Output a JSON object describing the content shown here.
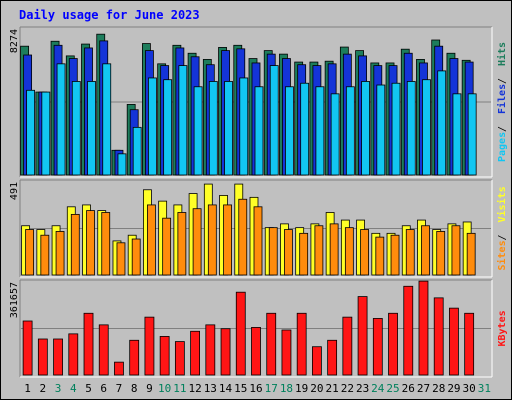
{
  "chart_data": {
    "type": "bar",
    "title": "Daily usage for June 2023",
    "days": [
      "1",
      "2",
      "3",
      "4",
      "5",
      "6",
      "7",
      "8",
      "9",
      "10",
      "11",
      "12",
      "13",
      "14",
      "15",
      "16",
      "17",
      "18",
      "19",
      "20",
      "21",
      "22",
      "23",
      "24",
      "25",
      "26",
      "27",
      "28",
      "29",
      "30",
      "31"
    ],
    "weekend_days": [
      "3",
      "4",
      "10",
      "11",
      "17",
      "18",
      "24",
      "25",
      "31"
    ],
    "panels": [
      {
        "id": "hits-files-pages",
        "max_label": "8274",
        "max_value": 8274,
        "axis_labels": [
          "Pages",
          "Files",
          "Hits"
        ],
        "series": [
          {
            "name": "Hits",
            "color": "#1d7d5c",
            "values": [
              7300,
              4700,
              7580,
              6750,
              7420,
              7980,
              1400,
              4000,
              7450,
              6300,
              7350,
              6900,
              6550,
              7230,
              7350,
              6600,
              7050,
              6850,
              6400,
              6400,
              6450,
              7250,
              7050,
              6350,
              6350,
              7130,
              6550,
              7650,
              6900,
              6500,
              0
            ]
          },
          {
            "name": "Files",
            "color": "#1434d8",
            "values": [
              6800,
              4700,
              7350,
              6600,
              7200,
              7600,
              1400,
              3700,
              7050,
              6200,
              7200,
              6700,
              6250,
              7050,
              7150,
              6350,
              6850,
              6600,
              6250,
              6200,
              6300,
              6850,
              6750,
              6200,
              6200,
              6900,
              6350,
              7300,
              6600,
              6400,
              0
            ]
          },
          {
            "name": "Pages",
            "color": "#12c6f2",
            "values": [
              4800,
              4700,
              6300,
              5300,
              5300,
              6300,
              1200,
              2700,
              5500,
              5400,
              6200,
              5000,
              5300,
              5300,
              5500,
              5000,
              6200,
              5000,
              5200,
              5000,
              4600,
              5000,
              5300,
              5100,
              5200,
              5300,
              5400,
              5900,
              4600,
              4600,
              0
            ]
          }
        ]
      },
      {
        "id": "visits-sites",
        "max_label": "491",
        "max_value": 491,
        "axis_labels": [
          "Sites",
          "Visits"
        ],
        "series": [
          {
            "name": "Visits",
            "color": "#ffff27",
            "values": [
              260,
              240,
              260,
              360,
              370,
              340,
              180,
              210,
              450,
              390,
              370,
              430,
              480,
              420,
              480,
              410,
              250,
              270,
              250,
              270,
              330,
              290,
              290,
              220,
              220,
              260,
              290,
              240,
              270,
              280,
              0
            ]
          },
          {
            "name": "Sites",
            "color": "#ff8c0c",
            "values": [
              240,
              210,
              230,
              320,
              340,
              330,
              170,
              190,
              370,
              300,
              330,
              350,
              370,
              370,
              400,
              360,
              250,
              240,
              220,
              260,
              270,
              250,
              240,
              200,
              210,
              240,
              260,
              230,
              260,
              220,
              0
            ]
          }
        ]
      },
      {
        "id": "kbytes",
        "max_label": "361657",
        "max_value": 361657,
        "axis_labels": [
          "KBytes"
        ],
        "series": [
          {
            "name": "KBytes",
            "color": "#ff1515",
            "values": [
              210000,
              140000,
              140000,
              160000,
              240000,
              195000,
              50000,
              135000,
              225000,
              150000,
              130000,
              170000,
              195000,
              180000,
              322000,
              185000,
              240000,
              175000,
              240000,
              110000,
              135000,
              225000,
              305000,
              220000,
              240000,
              345000,
              365000,
              300000,
              260000,
              240000,
              0
            ]
          }
        ]
      }
    ]
  }
}
